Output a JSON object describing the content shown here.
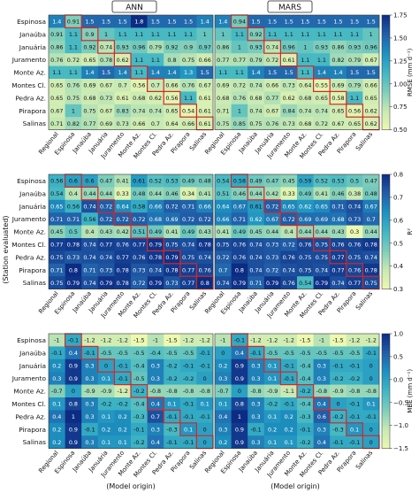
{
  "figure": {
    "panel_titles": [
      "ANN",
      "MARS"
    ],
    "ylabel": "(Station evaluated)",
    "xlabel": "(Model origin)"
  },
  "chart_data": [
    {
      "type": "heatmap",
      "id": "rmse",
      "columns": [
        "Regional",
        "Espinosa",
        "Janaúba",
        "Januária",
        "Juramento",
        "Monte Az.",
        "Montes Cl.",
        "Pedra Az.",
        "Pirapora",
        "Salinas"
      ],
      "rows": [
        "Espinosa",
        "Janaúba",
        "Januária",
        "Juramento",
        "Monte Az.",
        "Montes Cl.",
        "Pedra Az.",
        "Pirapora",
        "Salinas"
      ],
      "colorbar": {
        "label": "RMSE (mm d⁻¹)",
        "range": [
          0.5,
          1.75
        ],
        "ticks": [
          "1.75",
          "1.50",
          "1.25",
          "1.00",
          "0.75",
          "0.50"
        ]
      },
      "panels": [
        {
          "title": "ANN",
          "values": [
            [
              "1.4",
              "0.91",
              "1.5",
              "1.5",
              "1.5",
              "1.8",
              "1.5",
              "1.5",
              "1.5",
              "1.4"
            ],
            [
              "0.91",
              "1.1",
              "0.9",
              "1",
              "1.1",
              "1.1",
              "1.1",
              "1.1",
              "1.1",
              "1"
            ],
            [
              "0.86",
              "1.1",
              "0.92",
              "0.74",
              "0.93",
              "0.96",
              "0.79",
              "0.92",
              "0.9",
              "0.97"
            ],
            [
              "0.76",
              "0.72",
              "0.65",
              "0.78",
              "0.62",
              "1.1",
              "1.1",
              "0.8",
              "0.75",
              "0.66"
            ],
            [
              "1.1",
              "1.1",
              "1.4",
              "1.5",
              "1.4",
              "1.1",
              "1.4",
              "1.4",
              "1.3",
              "1.5"
            ],
            [
              "0.65",
              "0.76",
              "0.69",
              "0.67",
              "0.7",
              "0.56",
              "0.7",
              "0.66",
              "0.76",
              "0.67"
            ],
            [
              "0.65",
              "0.75",
              "0.68",
              "0.73",
              "0.61",
              "0.68",
              "0.62",
              "0.56",
              "1.1",
              "0.61"
            ],
            [
              "0.67",
              "1",
              "0.75",
              "0.67",
              "0.83",
              "0.74",
              "0.74",
              "0.65",
              "0.54",
              "0.61"
            ],
            [
              "0.71",
              "0.82",
              "0.77",
              "0.69",
              "0.73",
              "0.66",
              "0.7",
              "0.64",
              "0.66",
              "0.61"
            ]
          ]
        },
        {
          "title": "MARS",
          "values": [
            [
              "1.4",
              "0.94",
              "1.5",
              "1.5",
              "1.5",
              "1.5",
              "1.5",
              "1.5",
              "1.5",
              "1.5"
            ],
            [
              "1",
              "1.1",
              "0.92",
              "1.1",
              "1.1",
              "1.1",
              "1.1",
              "1.1",
              "1.1",
              "1"
            ],
            [
              "0.86",
              "1",
              "0.93",
              "0.74",
              "0.96",
              "1",
              "0.93",
              "0.86",
              "0.93",
              "0.96"
            ],
            [
              "0.77",
              "0.77",
              "0.79",
              "0.72",
              "0.61",
              "1.1",
              "1.1",
              "0.82",
              "0.79",
              "0.67"
            ],
            [
              "1.1",
              "1.1",
              "1.4",
              "1.5",
              "1.5",
              "1.1",
              "1.4",
              "1.4",
              "1.5",
              "1.5"
            ],
            [
              "0.69",
              "0.72",
              "0.74",
              "0.66",
              "0.73",
              "0.64",
              "0.55",
              "0.69",
              "0.79",
              "0.66"
            ],
            [
              "0.68",
              "0.76",
              "0.68",
              "0.77",
              "0.62",
              "0.68",
              "0.65",
              "0.58",
              "1.1",
              "0.65"
            ],
            [
              "0.71",
              "1",
              "0.74",
              "0.67",
              "0.84",
              "0.74",
              "0.74",
              "0.65",
              "0.56",
              "0.62"
            ],
            [
              "0.75",
              "0.85",
              "0.75",
              "0.76",
              "0.73",
              "0.68",
              "0.72",
              "0.67",
              "0.65",
              "0.62"
            ]
          ]
        }
      ]
    },
    {
      "type": "heatmap",
      "id": "r2",
      "columns": [
        "Regional",
        "Espinosa",
        "Janaúba",
        "Januária",
        "Juramento",
        "Monte Az.",
        "Montes Cl.",
        "Pedra Az.",
        "Pirapora",
        "Salinas"
      ],
      "rows": [
        "Espinosa",
        "Janaúba",
        "Januária",
        "Juramento",
        "Monte Az.",
        "Montes Cl.",
        "Pedra Az.",
        "Pirapora",
        "Salinas"
      ],
      "colorbar": {
        "label": "R²",
        "range": [
          0.3,
          0.8
        ],
        "ticks": [
          "0.8",
          "0.7",
          "0.6",
          "0.5",
          "0.4",
          "0.3"
        ]
      },
      "panels": [
        {
          "title": "ANN",
          "values": [
            [
              "0.56",
              "0.6",
              "0.6",
              "0.47",
              "0.41",
              "0.61",
              "0.52",
              "0.53",
              "0.49",
              "0.48"
            ],
            [
              "0.54",
              "0.4",
              "0.44",
              "0.44",
              "0.33",
              "0.48",
              "0.44",
              "0.46",
              "0.34",
              "0.41"
            ],
            [
              "0.65",
              "0.56",
              "0.74",
              "0.72",
              "0.64",
              "0.58",
              "0.66",
              "0.72",
              "0.71",
              "0.66"
            ],
            [
              "0.71",
              "0.71",
              "0.56",
              "0.72",
              "0.72",
              "0.72",
              "0.68",
              "0.69",
              "0.72",
              "0.72"
            ],
            [
              "0.45",
              "0.5",
              "0.4",
              "0.43",
              "0.42",
              "0.51",
              "0.49",
              "0.41",
              "0.49",
              "0.43"
            ],
            [
              "0.77",
              "0.78",
              "0.74",
              "0.77",
              "0.76",
              "0.77",
              "0.79",
              "0.75",
              "0.74",
              "0.78"
            ],
            [
              "0.75",
              "0.73",
              "0.74",
              "0.74",
              "0.77",
              "0.76",
              "0.78",
              "0.79",
              "0.75",
              "0.74"
            ],
            [
              "0.71",
              "0.8",
              "0.71",
              "0.73",
              "0.78",
              "0.73",
              "0.74",
              "0.78",
              "0.77",
              "0.76"
            ],
            [
              "0.75",
              "0.79",
              "0.74",
              "0.79",
              "0.78",
              "0.72",
              "0.79",
              "0.73",
              "0.77",
              "0.8"
            ]
          ]
        },
        {
          "title": "MARS",
          "values": [
            [
              "0.54",
              "0.58",
              "0.49",
              "0.47",
              "0.45",
              "0.59",
              "0.52",
              "0.53",
              "0.5",
              "0.47"
            ],
            [
              "0.51",
              "0.46",
              "0.44",
              "0.42",
              "0.33",
              "0.49",
              "0.41",
              "0.46",
              "0.38",
              "0.48"
            ],
            [
              "0.64",
              "0.67",
              "0.61",
              "0.72",
              "0.65",
              "0.62",
              "0.65",
              "0.71",
              "0.74",
              "0.67"
            ],
            [
              "0.66",
              "0.71",
              "0.62",
              "0.67",
              "0.72",
              "0.69",
              "0.69",
              "0.68",
              "0.73",
              "0.7"
            ],
            [
              "0.41",
              "0.49",
              "0.45",
              "0.44",
              "0.4",
              "0.44",
              "0.44",
              "0.43",
              "0.3",
              "0.44"
            ],
            [
              "0.75",
              "0.76",
              "0.74",
              "0.73",
              "0.72",
              "0.76",
              "0.75",
              "0.76",
              "0.76",
              "0.78"
            ],
            [
              "0.72",
              "0.76",
              "0.74",
              "0.73",
              "0.76",
              "0.75",
              "0.75",
              "0.77",
              "0.75",
              "0.74"
            ],
            [
              "0.7",
              "0.8",
              "0.74",
              "0.72",
              "0.74",
              "0.75",
              "0.74",
              "0.77",
              "0.76",
              "0.78"
            ],
            [
              "0.74",
              "0.79",
              "0.71",
              "0.79",
              "0.76",
              "0.54",
              "0.79",
              "0.74",
              "0.77",
              "0.75"
            ]
          ]
        }
      ]
    },
    {
      "type": "heatmap",
      "id": "mbe",
      "columns": [
        "Regional",
        "Espinosa",
        "Janaúba",
        "Januária",
        "Juramento",
        "Monte Az.",
        "Montes Cl.",
        "Pedra Az.",
        "Pirapora",
        "Salinas"
      ],
      "rows": [
        "Espinosa",
        "Janaúba",
        "Januária",
        "Juramento",
        "Monte Az.",
        "Montes Cl.",
        "Pedra Az.",
        "Pirapora",
        "Salinas"
      ],
      "colorbar": {
        "label": "MBE (mm d⁻¹)",
        "range": [
          -1.5,
          1.0
        ],
        "ticks": [
          "1.0",
          "0.5",
          "0.0",
          "−0.5",
          "−1.0",
          "−1.5"
        ]
      },
      "panels": [
        {
          "title": "ANN",
          "values": [
            [
              "-1",
              "-0.1",
              "-1.2",
              "-1.2",
              "-1.2",
              "-1.5",
              "-1",
              "-1.5",
              "-1.2",
              "-1.2"
            ],
            [
              "-0.1",
              "0.4",
              "-0.1",
              "-0.5",
              "-0.5",
              "-0.5",
              "-0.4",
              "-0.5",
              "-0.5",
              "-0.1"
            ],
            [
              "0.2",
              "0.9",
              "0.3",
              "0",
              "-0.1",
              "-0.4",
              "0.3",
              "-0.2",
              "-0.1",
              "-0.1"
            ],
            [
              "0.3",
              "0.9",
              "0.3",
              "0.1",
              "-0.1",
              "-0.5",
              "0.3",
              "-0.2",
              "-0.2",
              "0"
            ],
            [
              "-0.7",
              "0",
              "-0.9",
              "-0.9",
              "-1.2",
              "-0.2",
              "-0.8",
              "-0.8",
              "-0.8",
              "-0.8"
            ],
            [
              "0.1",
              "0.8",
              "0.3",
              "-0.2",
              "-0.2",
              "-0.4",
              "0.4",
              "0.1",
              "-0.1",
              "0.1"
            ],
            [
              "0.4",
              "1",
              "0.3",
              "0.1",
              "0.2",
              "-0.3",
              "0.7",
              "-0.1",
              "-0.1",
              "-0.1"
            ],
            [
              "0.2",
              "0.9",
              "-0.1",
              "0.2",
              "0.2",
              "-0.1",
              "0.3",
              "-0.3",
              "0.1",
              "0"
            ],
            [
              "0.2",
              "0.9",
              "0.3",
              "0.1",
              "0.1",
              "-0.2",
              "0.4",
              "-0.1",
              "-0.1",
              "0"
            ]
          ]
        },
        {
          "title": "MARS",
          "values": [
            [
              "-1",
              "-0.1",
              "-1.2",
              "-1.2",
              "-1.2",
              "-1.5",
              "-1",
              "-1.5",
              "-1.2",
              "-1.2"
            ],
            [
              "0",
              "0.4",
              "-0.1",
              "-0.5",
              "-0.5",
              "-0.5",
              "-0.5",
              "-0.5",
              "-0.5",
              "-0.1"
            ],
            [
              "0.2",
              "0.9",
              "0.3",
              "0.1",
              "-0.1",
              "-0.4",
              "0.3",
              "-0.1",
              "-0.1",
              "0"
            ],
            [
              "0.3",
              "0.9",
              "0.3",
              "0.1",
              "-0.1",
              "-0.4",
              "0.3",
              "-0.2",
              "-0.2",
              "0"
            ],
            [
              "-0.7",
              "0",
              "-0.8",
              "-0.9",
              "-1.1",
              "-0.2",
              "-0.8",
              "-0.9",
              "-0.8",
              "-0.8"
            ],
            [
              "0.1",
              "0.8",
              "0.3",
              "-0.2",
              "-0.1",
              "-0.4",
              "0.4",
              "0",
              "-0.1",
              "0.1"
            ],
            [
              "0.4",
              "1",
              "0.3",
              "0.1",
              "0.2",
              "-0.3",
              "0.6",
              "-0.2",
              "-0.1",
              "-0.1"
            ],
            [
              "0.3",
              "0.9",
              "-0.1",
              "0.2",
              "0.2",
              "-0.1",
              "0.3",
              "-0.3",
              "0.1",
              "0"
            ],
            [
              "0.2",
              "0.9",
              "0.3",
              "0.1",
              "0.1",
              "-0.2",
              "0.4",
              "-0.1",
              "-0.1",
              "0"
            ]
          ]
        }
      ]
    }
  ]
}
